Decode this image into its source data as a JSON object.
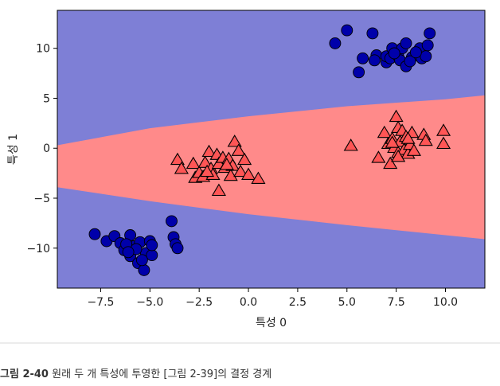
{
  "caption": {
    "label": "그림 2-40",
    "text": "원래 두 개 특성에 투영한 [그림 2-39]의 결정 경계"
  },
  "colors": {
    "region_negative": "#7e7fd6",
    "region_positive": "#ff8a8a",
    "class_0_marker": "#0000aa",
    "class_1_marker": "#ff5555",
    "marker_edge": "#000000"
  },
  "chart_data": {
    "type": "scatter",
    "title": "",
    "xlabel": "특성 0",
    "ylabel": "특성 1",
    "xlim": [
      -9.7,
      12.0
    ],
    "ylim": [
      -14.0,
      13.8
    ],
    "xticks": [
      -7.5,
      -5.0,
      -2.5,
      0.0,
      2.5,
      5.0,
      7.5,
      10.0
    ],
    "xtick_labels": [
      "−7.5",
      "−5.0",
      "−2.5",
      "0.0",
      "2.5",
      "5.0",
      "7.5",
      "10.0"
    ],
    "yticks": [
      -10,
      -5,
      0,
      5,
      10
    ],
    "ytick_labels": [
      "−10",
      "−5",
      "0",
      "5",
      "10"
    ],
    "grid": false,
    "legend": "none",
    "decision_boundary": {
      "description_shape": "quadratic",
      "upper_x": [
        -9.7,
        -5.0,
        0.0,
        5.0,
        10.0,
        12.0
      ],
      "upper_y": [
        0.3,
        2.0,
        3.2,
        4.2,
        4.9,
        5.3
      ],
      "lower_x": [
        -9.7,
        -5.0,
        0.0,
        5.0,
        10.0,
        12.0
      ],
      "lower_y": [
        -3.9,
        -5.3,
        -6.6,
        -7.7,
        -8.7,
        -9.1
      ]
    },
    "series": [
      {
        "class": 0,
        "marker": "circle",
        "points": [
          [
            4.4,
            10.5
          ],
          [
            5.0,
            11.8
          ],
          [
            6.3,
            11.5
          ],
          [
            5.8,
            9.0
          ],
          [
            6.5,
            9.3
          ],
          [
            6.4,
            8.8
          ],
          [
            5.6,
            7.6
          ],
          [
            7.0,
            8.6
          ],
          [
            7.0,
            9.2
          ],
          [
            7.3,
            10.0
          ],
          [
            7.2,
            9.0
          ],
          [
            7.6,
            9.2
          ],
          [
            7.8,
            10.0
          ],
          [
            7.7,
            8.8
          ],
          [
            8.0,
            8.2
          ],
          [
            8.0,
            10.5
          ],
          [
            8.3,
            9.1
          ],
          [
            8.2,
            8.7
          ],
          [
            8.7,
            10.0
          ],
          [
            8.8,
            9.0
          ],
          [
            9.0,
            9.2
          ],
          [
            9.1,
            10.3
          ],
          [
            9.2,
            11.5
          ],
          [
            7.4,
            9.5
          ],
          [
            8.5,
            9.6
          ],
          [
            -7.8,
            -8.6
          ],
          [
            -7.2,
            -9.3
          ],
          [
            -6.8,
            -8.8
          ],
          [
            -6.5,
            -9.5
          ],
          [
            -6.3,
            -10.2
          ],
          [
            -6.0,
            -8.7
          ],
          [
            -6.0,
            -10.8
          ],
          [
            -5.8,
            -9.8
          ],
          [
            -5.6,
            -11.5
          ],
          [
            -5.5,
            -9.4
          ],
          [
            -5.3,
            -12.2
          ],
          [
            -5.2,
            -10.5
          ],
          [
            -5.0,
            -9.3
          ],
          [
            -4.9,
            -10.7
          ],
          [
            -5.7,
            -10.1
          ],
          [
            -3.9,
            -7.3
          ],
          [
            -3.8,
            -8.9
          ],
          [
            -3.7,
            -9.6
          ],
          [
            -3.6,
            -10.0
          ],
          [
            -6.2,
            -9.6
          ],
          [
            -5.4,
            -11.2
          ],
          [
            -4.9,
            -9.7
          ],
          [
            -6.1,
            -10.4
          ]
        ]
      },
      {
        "class": 1,
        "marker": "triangle",
        "points": [
          [
            -3.6,
            -1.2
          ],
          [
            -3.4,
            -2.1
          ],
          [
            -2.8,
            -1.6
          ],
          [
            -2.7,
            -3.0
          ],
          [
            -2.5,
            -2.5
          ],
          [
            -2.3,
            -2.9
          ],
          [
            -2.2,
            -1.5
          ],
          [
            -2.0,
            -0.4
          ],
          [
            -1.9,
            -2.1
          ],
          [
            -1.8,
            -2.7
          ],
          [
            -1.6,
            -0.7
          ],
          [
            -1.5,
            -1.6
          ],
          [
            -1.3,
            -1.0
          ],
          [
            -1.2,
            -2.0
          ],
          [
            -1.0,
            -1.1
          ],
          [
            -0.9,
            -2.8
          ],
          [
            -0.8,
            -1.8
          ],
          [
            -0.7,
            0.6
          ],
          [
            -0.5,
            -0.3
          ],
          [
            -0.4,
            -2.4
          ],
          [
            -0.2,
            -1.2
          ],
          [
            0.0,
            -2.7
          ],
          [
            0.5,
            -3.1
          ],
          [
            -1.5,
            -4.3
          ],
          [
            -2.1,
            -2.4
          ],
          [
            -1.1,
            -1.7
          ],
          [
            5.2,
            0.2
          ],
          [
            6.6,
            -1.0
          ],
          [
            6.9,
            1.5
          ],
          [
            7.1,
            0.4
          ],
          [
            7.2,
            -1.6
          ],
          [
            7.3,
            0.9
          ],
          [
            7.4,
            0.0
          ],
          [
            7.5,
            3.1
          ],
          [
            7.6,
            2.0
          ],
          [
            7.6,
            -0.5
          ],
          [
            7.7,
            0.6
          ],
          [
            7.8,
            1.7
          ],
          [
            7.9,
            -0.2
          ],
          [
            8.0,
            1.1
          ],
          [
            8.1,
            -0.6
          ],
          [
            8.2,
            0.3
          ],
          [
            8.3,
            1.5
          ],
          [
            8.4,
            -0.3
          ],
          [
            8.9,
            1.3
          ],
          [
            9.0,
            0.7
          ],
          [
            9.9,
            0.4
          ],
          [
            9.9,
            1.7
          ],
          [
            7.6,
            -0.9
          ],
          [
            8.1,
            0.9
          ],
          [
            7.3,
            0.5
          ]
        ]
      }
    ]
  }
}
